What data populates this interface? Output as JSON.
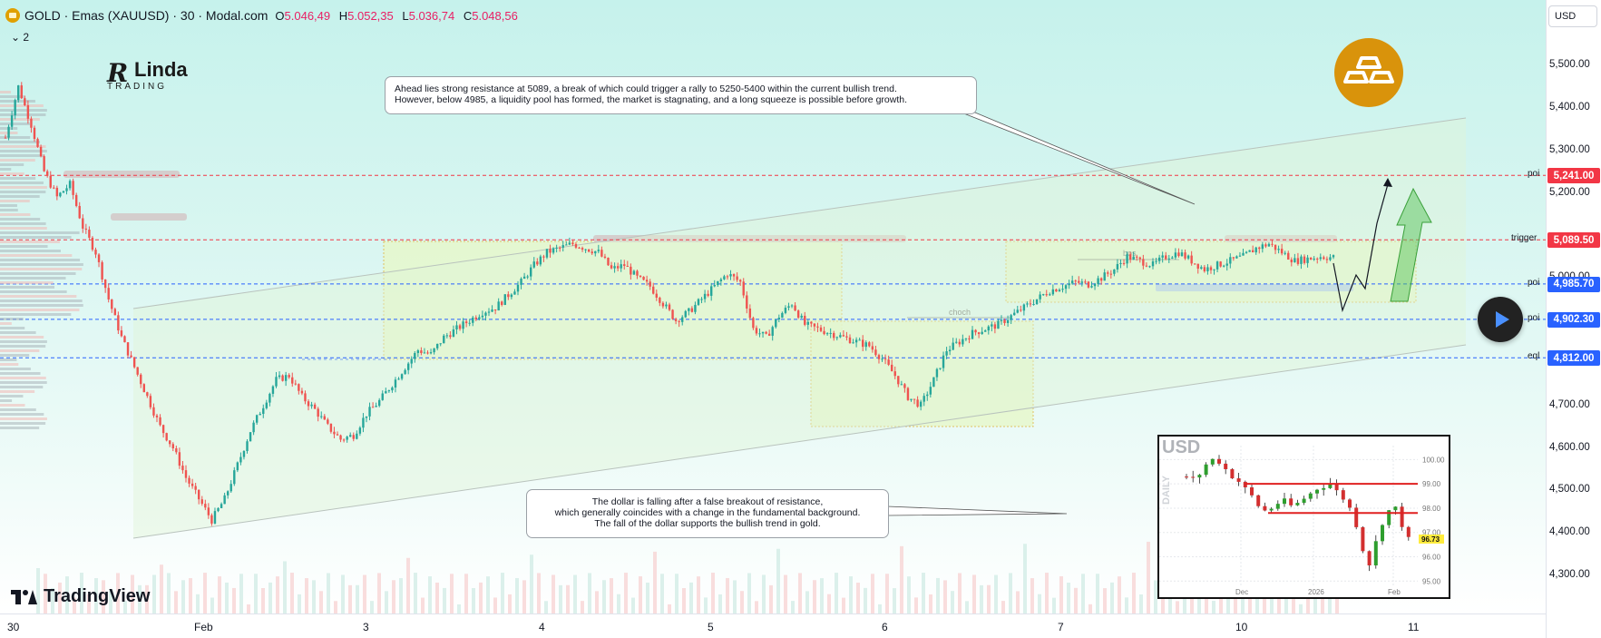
{
  "header": {
    "symbol_title": "GOLD · Emas (XAUUSD) · 30 · Modal.com",
    "ohlc": [
      {
        "key": "O",
        "value": "5.046,49"
      },
      {
        "key": "H",
        "value": "5.052,35"
      },
      {
        "key": "L",
        "value": "5.036,74"
      },
      {
        "key": "C",
        "value": "5.048,56"
      }
    ],
    "indicator_toggle": "⌄ 2"
  },
  "logo": {
    "big": "R",
    "inda": "Linda",
    "trading": "TRADING"
  },
  "currency_button": "USD",
  "callouts": {
    "top": [
      "Ahead lies strong resistance at 5089, a break of which could trigger a rally to 5250-5400 within the current bullish trend.",
      "However, below 4985, a liquidity pool has formed, the market is stagnating, and a long squeeze is possible before growth."
    ],
    "bottom": [
      "The dollar is falling after a false breakout of resistance,",
      "which generally coincides with a change in the fundamental background.",
      "The fall of the dollar supports the bullish trend in gold."
    ]
  },
  "annotations": {
    "bos": "bos",
    "choch": "choch"
  },
  "brand": "TradingView",
  "colors": {
    "bull": "#26a69a",
    "bear": "#ef5350",
    "trigger_red": "#f23645",
    "poi_blue": "#2962ff",
    "gold": "#d9930b",
    "zone_green": "#e6f7c9",
    "zone_border": "#e0c060"
  },
  "chart_data": [
    {
      "type": "candlestick",
      "title": "GOLD · Emas (XAUUSD) · 30",
      "y_ticks": [
        "5,500.00",
        "5,400.00",
        "5,300.00",
        "5,200.00",
        "5,000.00",
        "4,700.00",
        "4,600.00",
        "4,500.00",
        "4,400.00",
        "4,300.00"
      ],
      "y_range": [
        4260,
        5590
      ],
      "x_ticks": [
        "30",
        "Feb",
        "3",
        "4",
        "5",
        "6",
        "7",
        "10",
        "11"
      ],
      "levels": [
        {
          "label": "poi",
          "value": "5,241.00",
          "price": 5241,
          "color": "#f23645"
        },
        {
          "label": "trigger",
          "value": "5,089.50",
          "price": 5089.5,
          "color": "#f23645"
        },
        {
          "label": "poi",
          "value": "4,985.70",
          "price": 4985.7,
          "color": "#2962ff"
        },
        {
          "label": "poi",
          "value": "4,902.30",
          "price": 4902.3,
          "color": "#2962ff"
        },
        {
          "label": "eql",
          "value": "4,812.00",
          "price": 4812,
          "color": "#2962ff"
        }
      ],
      "path_closes": [
        5330,
        5450,
        5360,
        5250,
        5190,
        5220,
        5120,
        5060,
        4950,
        4860,
        4790,
        4720,
        4650,
        4600,
        4530,
        4480,
        4430,
        4480,
        4560,
        4640,
        4700,
        4760,
        4770,
        4720,
        4690,
        4650,
        4620,
        4630,
        4680,
        4710,
        4750,
        4790,
        4830,
        4820,
        4860,
        4880,
        4900,
        4920,
        4930,
        4960,
        4990,
        5030,
        5060,
        5070,
        5080,
        5070,
        5060,
        5020,
        5030,
        5000,
        4980,
        4940,
        4900,
        4920,
        4950,
        4980,
        5010,
        4990,
        4880,
        4860,
        4910,
        4940,
        4890,
        4880,
        4870,
        4860,
        4850,
        4840,
        4810,
        4770,
        4720,
        4700,
        4760,
        4830,
        4850,
        4870,
        4880,
        4890,
        4910,
        4930,
        4950,
        4970,
        4980,
        4990,
        4985,
        5000,
        5020,
        5050,
        5040,
        5030,
        5050,
        5060,
        5040,
        5020,
        5030,
        5040,
        5050,
        5070,
        5080,
        5060,
        5040,
        5045,
        5050,
        5048
      ]
    },
    {
      "type": "candlestick",
      "title": "USD",
      "ylabel": "DAILY",
      "y_ticks": [
        "100.00",
        "99.00",
        "98.00",
        "97.00",
        "96.00",
        "95.00"
      ],
      "y_range": [
        94.6,
        100.5
      ],
      "x_ticks": [
        "Dec",
        "2026",
        "Feb"
      ],
      "last_value": "96.73",
      "resistance": 99.0,
      "support": 97.8,
      "path_closes": [
        99.3,
        99.2,
        99.4,
        99.8,
        100.0,
        99.9,
        99.6,
        99.3,
        99.1,
        98.8,
        98.5,
        98.1,
        97.9,
        98.0,
        98.2,
        98.3,
        98.1,
        98.2,
        98.4,
        98.6,
        98.8,
        98.9,
        99.0,
        98.7,
        98.4,
        98.0,
        97.3,
        96.3,
        95.7,
        96.6,
        97.4,
        97.9,
        98.0,
        97.3,
        96.73
      ]
    }
  ]
}
